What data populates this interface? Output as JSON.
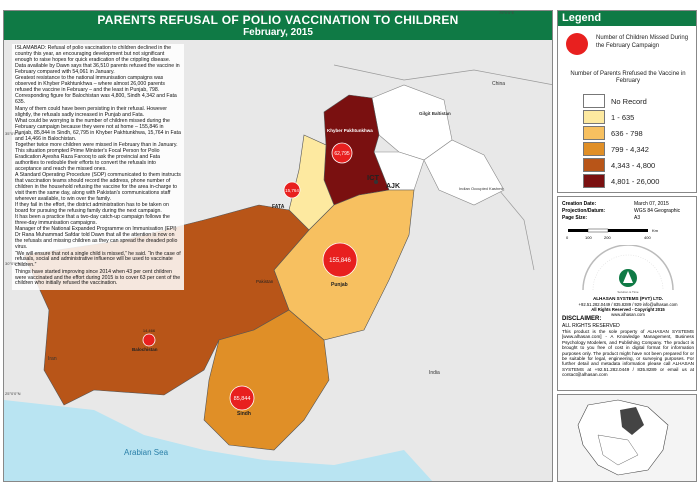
{
  "title": {
    "main": "PARENTS REFUSAL OF POLIO VACCINATION TO CHILDREN",
    "sub": "February, 2015"
  },
  "news": [
    "ISLAMABAD: Refusal of polio vaccination to children declined in the country this year, an encouraging development but not significant enough to raise hopes for quick eradication of the crippling disease.",
    "Data available by Dawn says that 36,510 parents refused the vaccine in February compared with 54,061 in January.",
    "Greatest resistance to the national immunisation campaigns was observed in Khyber Pakhtunkhwa – where almost 26,000 parents refused the vaccine in February – and the least in Punjab, 798.",
    "Corresponding figure for Balochistan was 4,800, Sindh 4,342 and Fata 635.",
    "Many of them could have been persisting in their refusal. However slightly, the refusals sadly increased in Punjab and Fata.",
    "What could be worrying is the number of children missed during the February campaign because they were not at home – 155,846 in Punjab, 85,844 in Sindh, 62,795 in Khyber Pakhtunkhwa, 15,764 in Fata and 14,466 in Balochistan.",
    "Together twice more children were missed in February than in January.",
    "This situation prompted Prime Minister's Focal Person for Polio Eradication Ayesha Raza Farooq to ask the provincial and Fata authorities to redouble their efforts to convert the refusals into acceptance and reach the missed ones.",
    "A Standard Operating Procedure (SOP) communicated to them instructs that vaccination teams should record the address, phone number of children in the household refusing the vaccine for the area in-charge to visit them the same day, along with Pakistan's communications staff wherever available, to win over the family.",
    "If they fail in the effort, the district administration has to be taken on board for pursuing the refusing family during the next campaign.",
    "It has been a practice that a two-day catch-up campaign follows the three-day immunisation campaigns.",
    "Manager of the National Expanded Programme on Immunisation (EPI) Dr Rana Muhammad Safdar told Dawn that all the attention is now on the refusals and missing children as they can spread the dreaded polio virus.",
    "“We will ensure that not a single child is missed,” he said. “In the case of refusals, social and administrative influence will be used to vaccinate children.”",
    "Things have started improving since 2014 when 43 per cent children were vaccinated and the effort during 2015 is to cover 63 per cent of the children who initially refused the vaccination."
  ],
  "map_labels": {
    "china": "China",
    "gilgit": "Gilgit\nBaltistan",
    "indian_kashmir": "Indian Occupied\nKashmir",
    "ict": "ICT",
    "ajk": "AJK",
    "kp": "Khyber\nPakhtunkhwa",
    "fata": "FATA",
    "punjab": "Punjab",
    "pakistan": "Pakistan",
    "balochistan": "Balochistan",
    "sindh": "Sindh",
    "iran": "Iran",
    "india": "India",
    "arabian_sea": "Arabian Sea"
  },
  "provinces": [
    {
      "name": "Khyber Pakhtunkhwa",
      "missed": "62,795",
      "refusals": 26000,
      "class": "4,801 - 26,000",
      "color": "#7a1010"
    },
    {
      "name": "FATA",
      "missed": "15,764",
      "refusals": 635,
      "class": "1 - 635",
      "color": "#fde9a0"
    },
    {
      "name": "Punjab",
      "missed": "155,846",
      "refusals": 798,
      "class": "636 - 798",
      "color": "#f7c060"
    },
    {
      "name": "Balochistan",
      "missed": "14,466",
      "refusals": 4800,
      "class": "4,343 - 4,800",
      "color": "#b85518"
    },
    {
      "name": "Sindh",
      "missed": "85,844",
      "refusals": 4342,
      "class": "799 - 4,342",
      "color": "#e08f27"
    }
  ],
  "legend": {
    "title": "Legend",
    "circle_label": "Number of Children Missed During the February Campaign",
    "choro_title": "Number of Parents Rrefused the Vaccine in February",
    "classes": [
      {
        "label": "No Record",
        "color": "#ffffff"
      },
      {
        "label": "1 - 635",
        "color": "#fde9a0"
      },
      {
        "label": "636 - 798",
        "color": "#f7c060"
      },
      {
        "label": "799 - 4,342",
        "color": "#e08f27"
      },
      {
        "label": "4,343 - 4,800",
        "color": "#b85518"
      },
      {
        "label": "4,801 - 26,000",
        "color": "#7a1010"
      }
    ]
  },
  "meta": {
    "creation_label": "Creation Date:",
    "creation_value": "March 07, 2015",
    "projection_label": "Projection/Datum:",
    "projection_value": "WGS 84 Geographic",
    "page_label": "Page Size:",
    "page_value": "A3",
    "scale_ticks": [
      "0",
      "100",
      "200",
      "400"
    ],
    "scale_unit": "Km"
  },
  "company": {
    "name": "ALHASAN SYSTEMS (PVT) LTD.",
    "phone": "+92.51.282.0449 / 835.8289 / 929 info@alhasan.com",
    "rights": "All Rights Reserved - Copyright 2015",
    "website": "www.alhasan.com",
    "tagline": "Solution is Time"
  },
  "disclaimer": {
    "head": "DISCLAIMER:",
    "sub": "ALL RIGHTS RESERVED",
    "body": "This product is the sole property of ALHASAN SYSTEMS [www.alhasan.com] - A Knowledge Management, Business Psychology Modelers, and Publishing Company. The product is brought to you free of cost in digital format for information purposes only. The product might have not been prepared for or be suitable for legal, engineering, or surveying purposes. For further detail and metadata information please call ALHASAN SYSTEMS at +92.51.282.0449 / 835.8289 or email us at contact@alhasan.com"
  },
  "coords": [
    "60°0'0\"E",
    "65°0'0\"E",
    "70°0'0\"E",
    "75°0'0\"E",
    "35°0'0\"N",
    "30°0'0\"N",
    "25°0'0\"N"
  ]
}
